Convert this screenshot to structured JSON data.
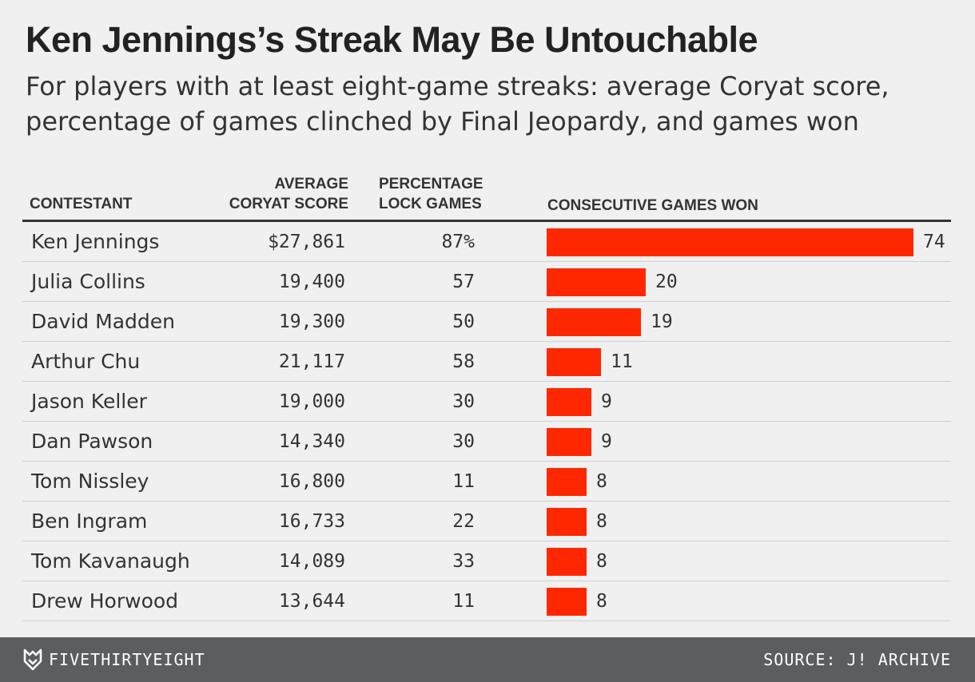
{
  "title": "Ken Jennings’s Streak May Be Untouchable",
  "subtitle": "For players with at least eight-game streaks: average Coryat score, percentage of games clinched by Final Jeopardy, and games won",
  "columns": {
    "contestant": "CONTESTANT",
    "coryat_line1": "AVERAGE",
    "coryat_line2": "CORYAT SCORE",
    "lock_line1": "PERCENTAGE",
    "lock_line2": "LOCK GAMES",
    "games": "CONSECUTIVE GAMES WON"
  },
  "colors": {
    "bar": "#ff2700",
    "background": "#f0f0f0",
    "footer": "#5b5e5f"
  },
  "footer": {
    "logo_icon": "fivethirtyeight-fox-icon",
    "brand": "FIVETHIRTYEIGHT",
    "source": "SOURCE: J! ARCHIVE"
  },
  "chart_data": {
    "type": "table",
    "bar_column": "games_won",
    "xlim": [
      0,
      74
    ],
    "rows": [
      {
        "name": "Ken Jennings",
        "coryat_display": "$27,861",
        "coryat": 27861,
        "lock_display": "87%",
        "lock": 87,
        "games_won": 74
      },
      {
        "name": "Julia Collins",
        "coryat_display": "19,400",
        "coryat": 19400,
        "lock_display": "57",
        "lock": 57,
        "games_won": 20
      },
      {
        "name": "David Madden",
        "coryat_display": "19,300",
        "coryat": 19300,
        "lock_display": "50",
        "lock": 50,
        "games_won": 19
      },
      {
        "name": "Arthur Chu",
        "coryat_display": "21,117",
        "coryat": 21117,
        "lock_display": "58",
        "lock": 58,
        "games_won": 11
      },
      {
        "name": "Jason Keller",
        "coryat_display": "19,000",
        "coryat": 19000,
        "lock_display": "30",
        "lock": 30,
        "games_won": 9
      },
      {
        "name": "Dan Pawson",
        "coryat_display": "14,340",
        "coryat": 14340,
        "lock_display": "30",
        "lock": 30,
        "games_won": 9
      },
      {
        "name": "Tom Nissley",
        "coryat_display": "16,800",
        "coryat": 16800,
        "lock_display": "11",
        "lock": 11,
        "games_won": 8
      },
      {
        "name": "Ben Ingram",
        "coryat_display": "16,733",
        "coryat": 16733,
        "lock_display": "22",
        "lock": 22,
        "games_won": 8
      },
      {
        "name": "Tom Kavanaugh",
        "coryat_display": "14,089",
        "coryat": 14089,
        "lock_display": "33",
        "lock": 33,
        "games_won": 8
      },
      {
        "name": "Drew Horwood",
        "coryat_display": "13,644",
        "coryat": 13644,
        "lock_display": "11",
        "lock": 11,
        "games_won": 8
      }
    ]
  }
}
